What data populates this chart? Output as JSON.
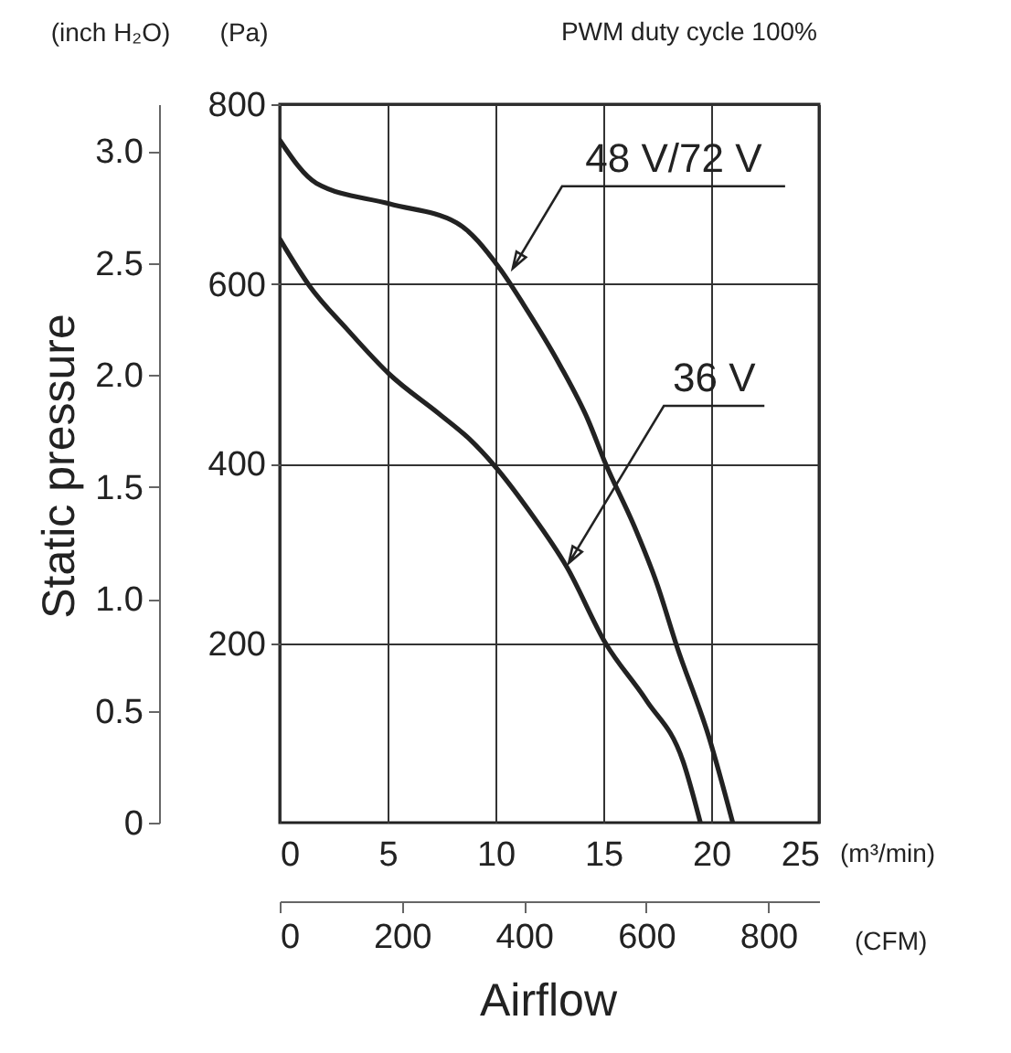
{
  "chart_data": {
    "type": "line",
    "annotations": [
      "PWM duty cycle 100%",
      "Static pressure",
      "Airflow",
      {
        "text": "48 V/72 V",
        "x": 10.8,
        "y": 617
      },
      {
        "text": "36 V",
        "x": 13.4,
        "y": 289
      }
    ],
    "xlabel": "(m³/min)",
    "ylabel": "(Pa)",
    "x2label": "(CFM)",
    "y2label": "(inch H₂O)",
    "xlim": [
      0,
      25
    ],
    "xticks": [
      0,
      5,
      10,
      15,
      20,
      25
    ],
    "ylim": [
      0,
      800
    ],
    "yticks": [
      200,
      400,
      600,
      800
    ],
    "x2lim": [
      0,
      883
    ],
    "x2ticks": [
      0,
      200,
      400,
      600,
      800
    ],
    "y2lim": [
      0,
      3.21
    ],
    "y2ticks": [
      0,
      0.5,
      {
        "value": 1,
        "label": "1.0"
      },
      1.5,
      {
        "value": 2,
        "label": "2.0"
      },
      2.5,
      {
        "value": 3,
        "label": "3.0"
      }
    ],
    "grid": true,
    "series": [
      {
        "color": "#222222",
        "x": [
          0,
          1.7,
          5.1,
          8.2,
          10.2,
          11.3,
          13.0,
          14.3,
          15.1,
          16.4,
          17.5,
          18.4,
          19.9,
          21.0
        ],
        "values": [
          760,
          712,
          689,
          668,
          617,
          577,
          509,
          448,
          400,
          332,
          265,
          197,
          95,
          0
        ]
      },
      {
        "color": "#222222",
        "x": [
          0,
          1.4,
          3.1,
          5.1,
          7.4,
          8.8,
          9.9,
          11.6,
          13.3,
          15.1,
          17.0,
          18.7,
          19.5
        ],
        "values": [
          650,
          597,
          550,
          499,
          455,
          427,
          399,
          346,
          285,
          200,
          136,
          68,
          0
        ]
      }
    ]
  }
}
